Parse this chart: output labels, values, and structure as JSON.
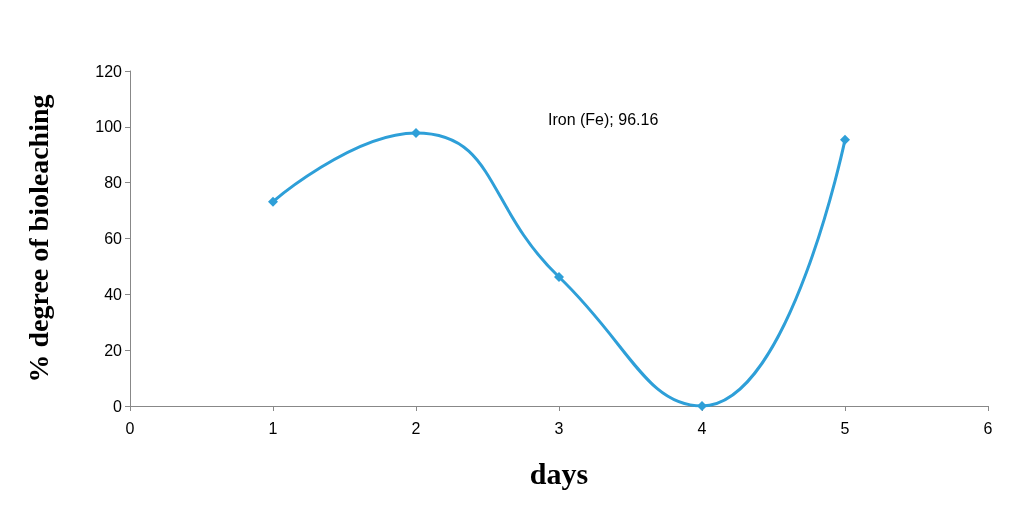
{
  "chart_data": {
    "type": "line",
    "xlabel": "days",
    "ylabel": "% degree of bioleaching",
    "x": [
      1,
      2,
      3,
      4,
      5
    ],
    "series": [
      {
        "color": "#2e9fd8",
        "values": [
          73.2,
          97.8,
          46.2,
          0,
          95.4
        ]
      }
    ],
    "xlim": [
      0,
      6
    ],
    "xticks": [
      0,
      1,
      2,
      3,
      4,
      5,
      6
    ],
    "ylim": [
      0,
      120
    ],
    "yticks": [
      0,
      20,
      40,
      60,
      80,
      100,
      120
    ],
    "marker": "diamond",
    "grid": false,
    "annotations": [
      "Iron (Fe); 96.16"
    ]
  }
}
